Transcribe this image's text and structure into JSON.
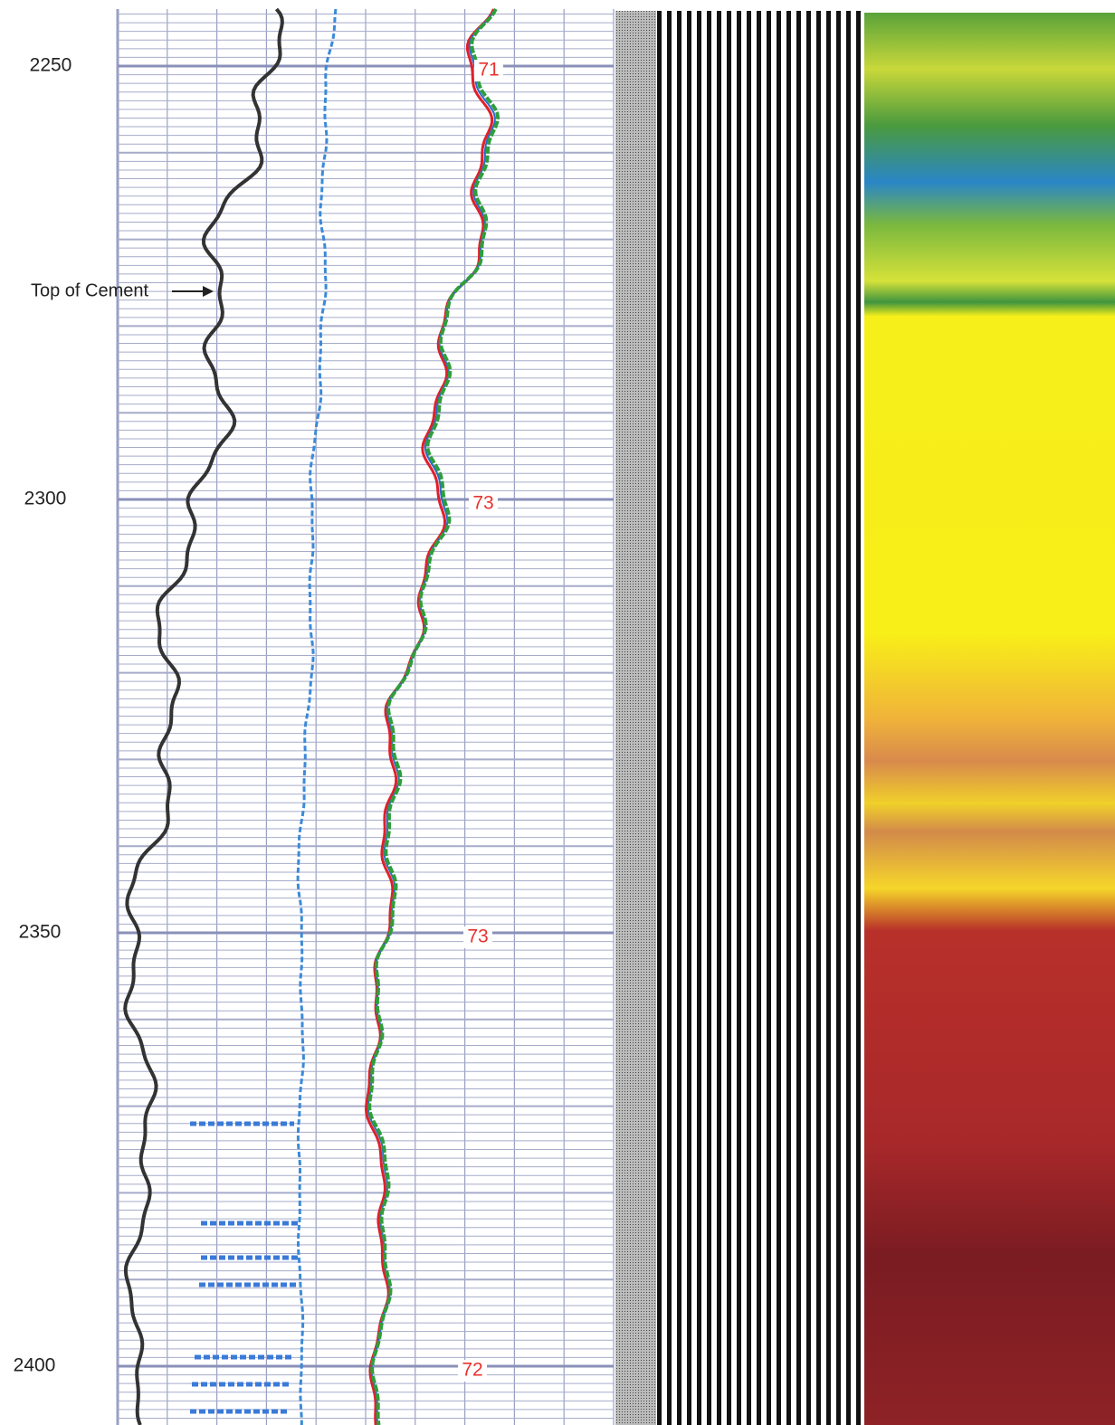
{
  "depth_labels": [
    "2250",
    "2300",
    "2350",
    "2400"
  ],
  "annotation": "Top of Cement",
  "track_labels": [
    "71",
    "73",
    "73",
    "72"
  ]
}
